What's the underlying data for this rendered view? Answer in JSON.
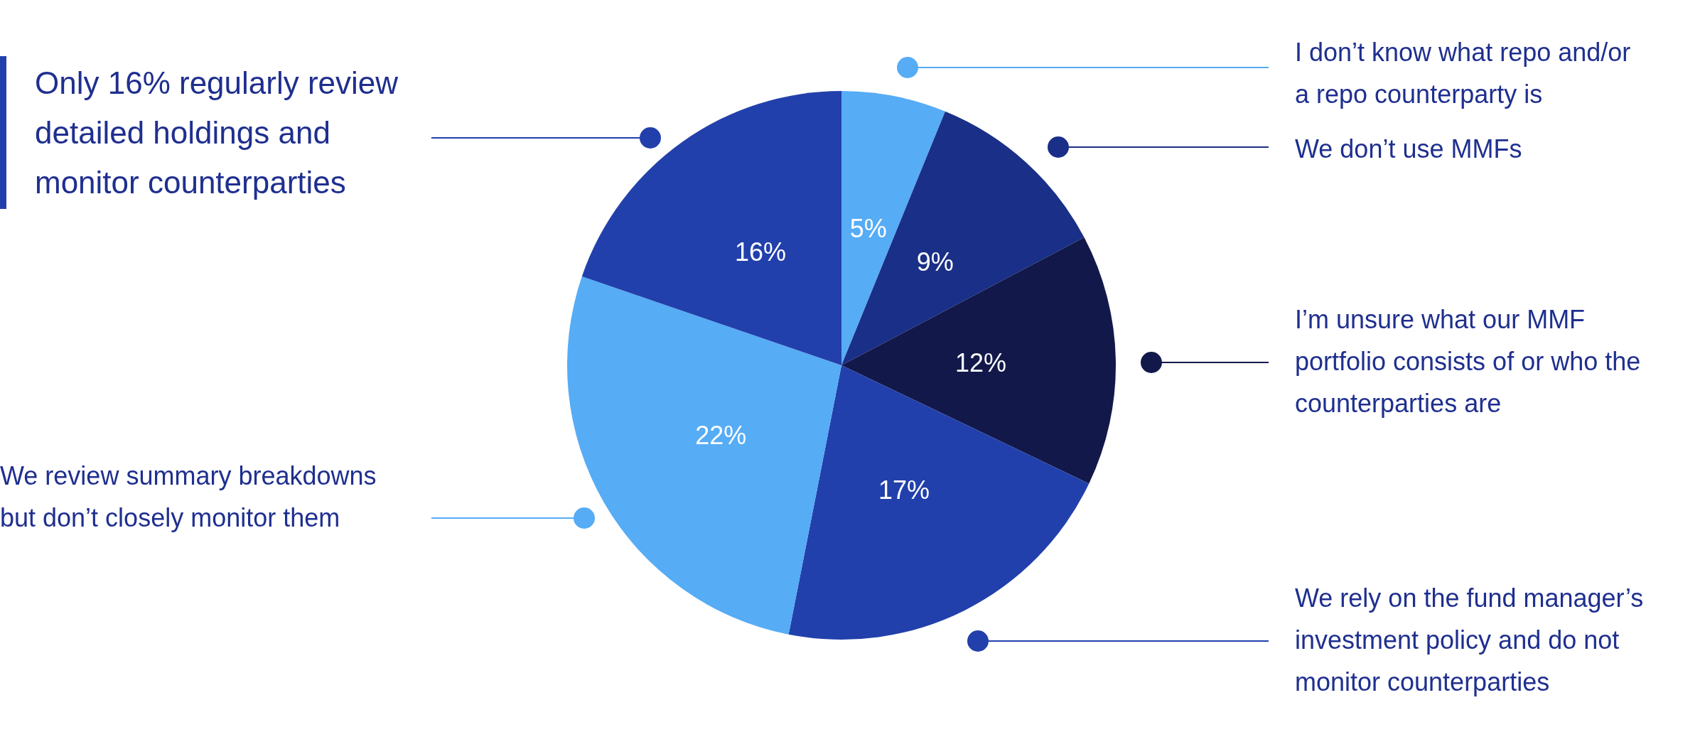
{
  "chart_data": {
    "type": "pie",
    "categories": [
      "I don’t know what repo and/or a repo counterparty is",
      "We don’t use MMFs",
      "I’m unsure what our MMF portfolio consists of or who the counterparties are",
      "We rely on the fund manager’s investment policy and do not monitor counterparties",
      "We review summary breakdowns but don’t closely monitor them",
      "Only 16% regularly review detailed holdings and monitor counterparties"
    ],
    "values": [
      5,
      9,
      12,
      17,
      22,
      16
    ],
    "colors": [
      "#56acf5",
      "#1a2f87",
      "#12194a",
      "#2240ab",
      "#56acf5",
      "#2240ab"
    ],
    "value_labels": [
      "5%",
      "9%",
      "12%",
      "17%",
      "22%",
      "16%"
    ]
  }
}
